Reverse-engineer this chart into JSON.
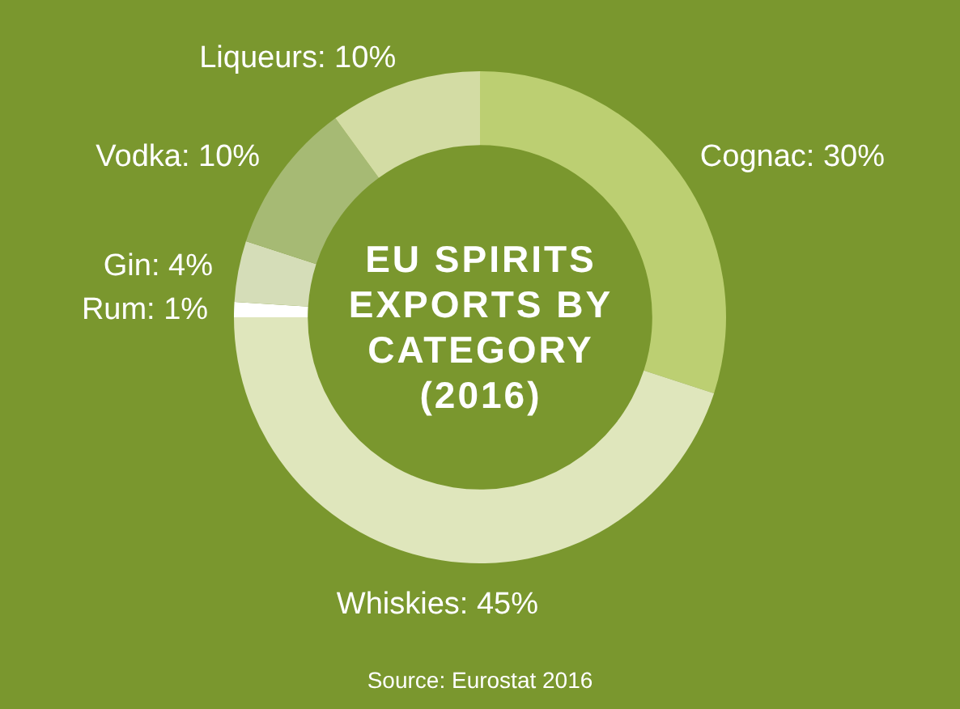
{
  "chart_data": {
    "type": "donut",
    "title": "EU SPIRITS EXPORTS BY CATEGORY (2016)",
    "categories": [
      "Cognac",
      "Whiskies",
      "Rum",
      "Gin",
      "Vodka",
      "Liqueurs"
    ],
    "values": [
      30,
      45,
      1,
      4,
      10,
      10
    ],
    "value_labels": [
      "30%",
      "45%",
      "1%",
      "4%",
      "10%",
      "10%"
    ],
    "colors": [
      "#bccf72",
      "#dfe6bc",
      "#ffffff",
      "#d5ddb8",
      "#a6ba74",
      "#d3dca4"
    ],
    "legend": false,
    "annotations": [
      "Source: Eurostat 2016"
    ]
  }
}
